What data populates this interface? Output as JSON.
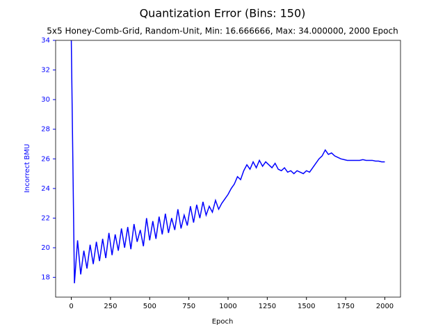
{
  "chart_data": {
    "type": "line",
    "title": "Quantization Error (Bins: 150)",
    "subtitle": "5x5 Honey-Comb-Grid, Random-Unit, Min: 16.666666, Max: 34.000000, 2000 Epoch",
    "x_label": "Epoch",
    "y_label": "Incorrect BMU",
    "xlim": [
      -100,
      2100
    ],
    "ylim": [
      16.666666,
      34
    ],
    "xticks": [
      0,
      250,
      500,
      750,
      1000,
      1250,
      1500,
      1750,
      2000
    ],
    "yticks": [
      18,
      20,
      22,
      24,
      26,
      28,
      30,
      32,
      34
    ],
    "y_axis_color": "#0000ff",
    "x": [
      0,
      20,
      40,
      60,
      80,
      100,
      120,
      140,
      160,
      180,
      200,
      220,
      240,
      260,
      280,
      300,
      320,
      340,
      360,
      380,
      400,
      420,
      440,
      460,
      480,
      500,
      520,
      540,
      560,
      580,
      600,
      620,
      640,
      660,
      680,
      700,
      720,
      740,
      760,
      780,
      800,
      820,
      840,
      860,
      880,
      900,
      920,
      940,
      960,
      980,
      1000,
      1020,
      1040,
      1060,
      1080,
      1100,
      1120,
      1140,
      1160,
      1180,
      1200,
      1220,
      1240,
      1260,
      1280,
      1300,
      1320,
      1340,
      1360,
      1380,
      1400,
      1420,
      1440,
      1460,
      1480,
      1500,
      1520,
      1540,
      1560,
      1580,
      1600,
      1620,
      1640,
      1660,
      1680,
      1700,
      1720,
      1740,
      1760,
      1780,
      1800,
      1820,
      1840,
      1860,
      1880,
      1900,
      1920,
      1940,
      1960,
      1980,
      2000
    ],
    "series": [
      {
        "name": "Incorrect BMU",
        "color": "#0000ff",
        "values": [
          34,
          17.6,
          20.5,
          18.2,
          19.8,
          18.6,
          20.2,
          18.9,
          20.4,
          19.1,
          20.6,
          19.3,
          21.0,
          19.5,
          20.9,
          19.8,
          21.3,
          20.0,
          21.4,
          19.9,
          21.6,
          20.4,
          21.2,
          20.1,
          22.0,
          20.5,
          21.8,
          20.6,
          22.1,
          20.9,
          22.3,
          21.0,
          22.0,
          21.2,
          22.6,
          21.3,
          22.2,
          21.5,
          22.8,
          21.7,
          22.9,
          22.0,
          23.1,
          22.2,
          22.8,
          22.4,
          23.2,
          22.6,
          23.0,
          23.3,
          23.6,
          24.0,
          24.3,
          24.8,
          24.6,
          25.2,
          25.6,
          25.3,
          25.8,
          25.4,
          25.9,
          25.5,
          25.8,
          25.6,
          25.4,
          25.7,
          25.3,
          25.2,
          25.4,
          25.1,
          25.2,
          25.0,
          25.2,
          25.1,
          25.0,
          25.2,
          25.1,
          25.4,
          25.7,
          26.0,
          26.2,
          26.6,
          26.3,
          26.4,
          26.2,
          26.1,
          26.0,
          25.95,
          25.9,
          25.9,
          25.9,
          25.9,
          25.9,
          25.95,
          25.9,
          25.9,
          25.9,
          25.85,
          25.85,
          25.8,
          25.8
        ]
      }
    ]
  }
}
